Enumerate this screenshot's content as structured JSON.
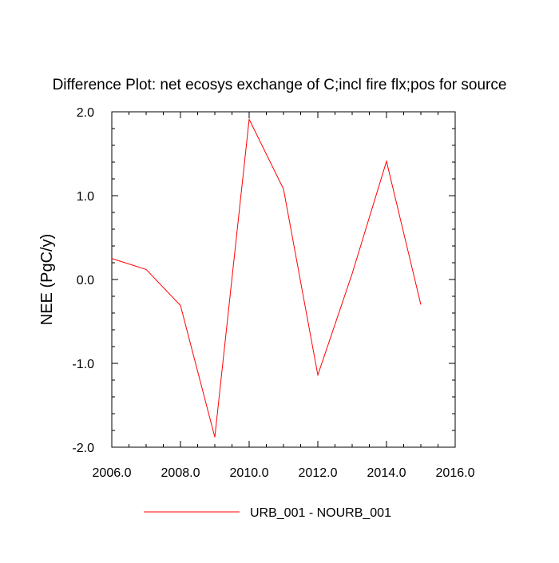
{
  "chart_data": {
    "type": "line",
    "title": "Difference Plot: net ecosys exchange of C;incl fire flx;pos for source",
    "xlabel": "",
    "ylabel": "NEE  (PgC/y)",
    "xlim": [
      2006.0,
      2016.0
    ],
    "ylim": [
      -2.0,
      2.0
    ],
    "x_ticks": [
      "2006.0",
      "2008.0",
      "2010.0",
      "2012.0",
      "2014.0",
      "2016.0"
    ],
    "y_ticks": [
      "2.0",
      "1.0",
      "0.0",
      "-1.0",
      "-2.0"
    ],
    "grid": false,
    "legend_position": "bottom",
    "series": [
      {
        "name": "URB_001 - NOURB_001",
        "color": "#ff0000",
        "x": [
          2006,
          2007,
          2008,
          2009,
          2010,
          2011,
          2012,
          2013,
          2014,
          2015
        ],
        "y": [
          0.25,
          0.12,
          -0.31,
          -1.88,
          1.91,
          1.08,
          -1.14,
          0.07,
          1.41,
          -0.3
        ]
      }
    ]
  }
}
